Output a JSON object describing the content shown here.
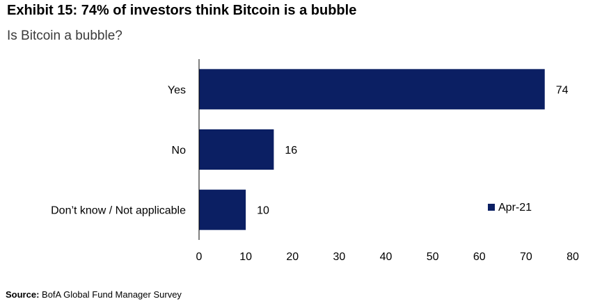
{
  "title": "Exhibit 15: 74% of investors think Bitcoin is a bubble",
  "subtitle": "Is Bitcoin a bubble?",
  "source": {
    "label": "Source:",
    "text": "BofA Global Fund Manager Survey"
  },
  "colors": {
    "bar": "#0b1f63",
    "axis": "#000000"
  },
  "chart_data": {
    "type": "bar",
    "orientation": "horizontal",
    "title": "Exhibit 15: 74% of investors think Bitcoin is a bubble",
    "subtitle": "Is Bitcoin a bubble?",
    "categories": [
      "Yes",
      "No",
      "Don’t know / Not applicable"
    ],
    "series": [
      {
        "name": "Apr-21",
        "values": [
          74,
          16,
          10
        ]
      }
    ],
    "data_labels": [
      "74",
      "16",
      "10"
    ],
    "xlim": [
      0,
      80
    ],
    "xticks": [
      0,
      10,
      20,
      30,
      40,
      50,
      60,
      70,
      80
    ],
    "xlabel": "",
    "ylabel": "",
    "grid": false,
    "legend_position": "bottom-right"
  }
}
